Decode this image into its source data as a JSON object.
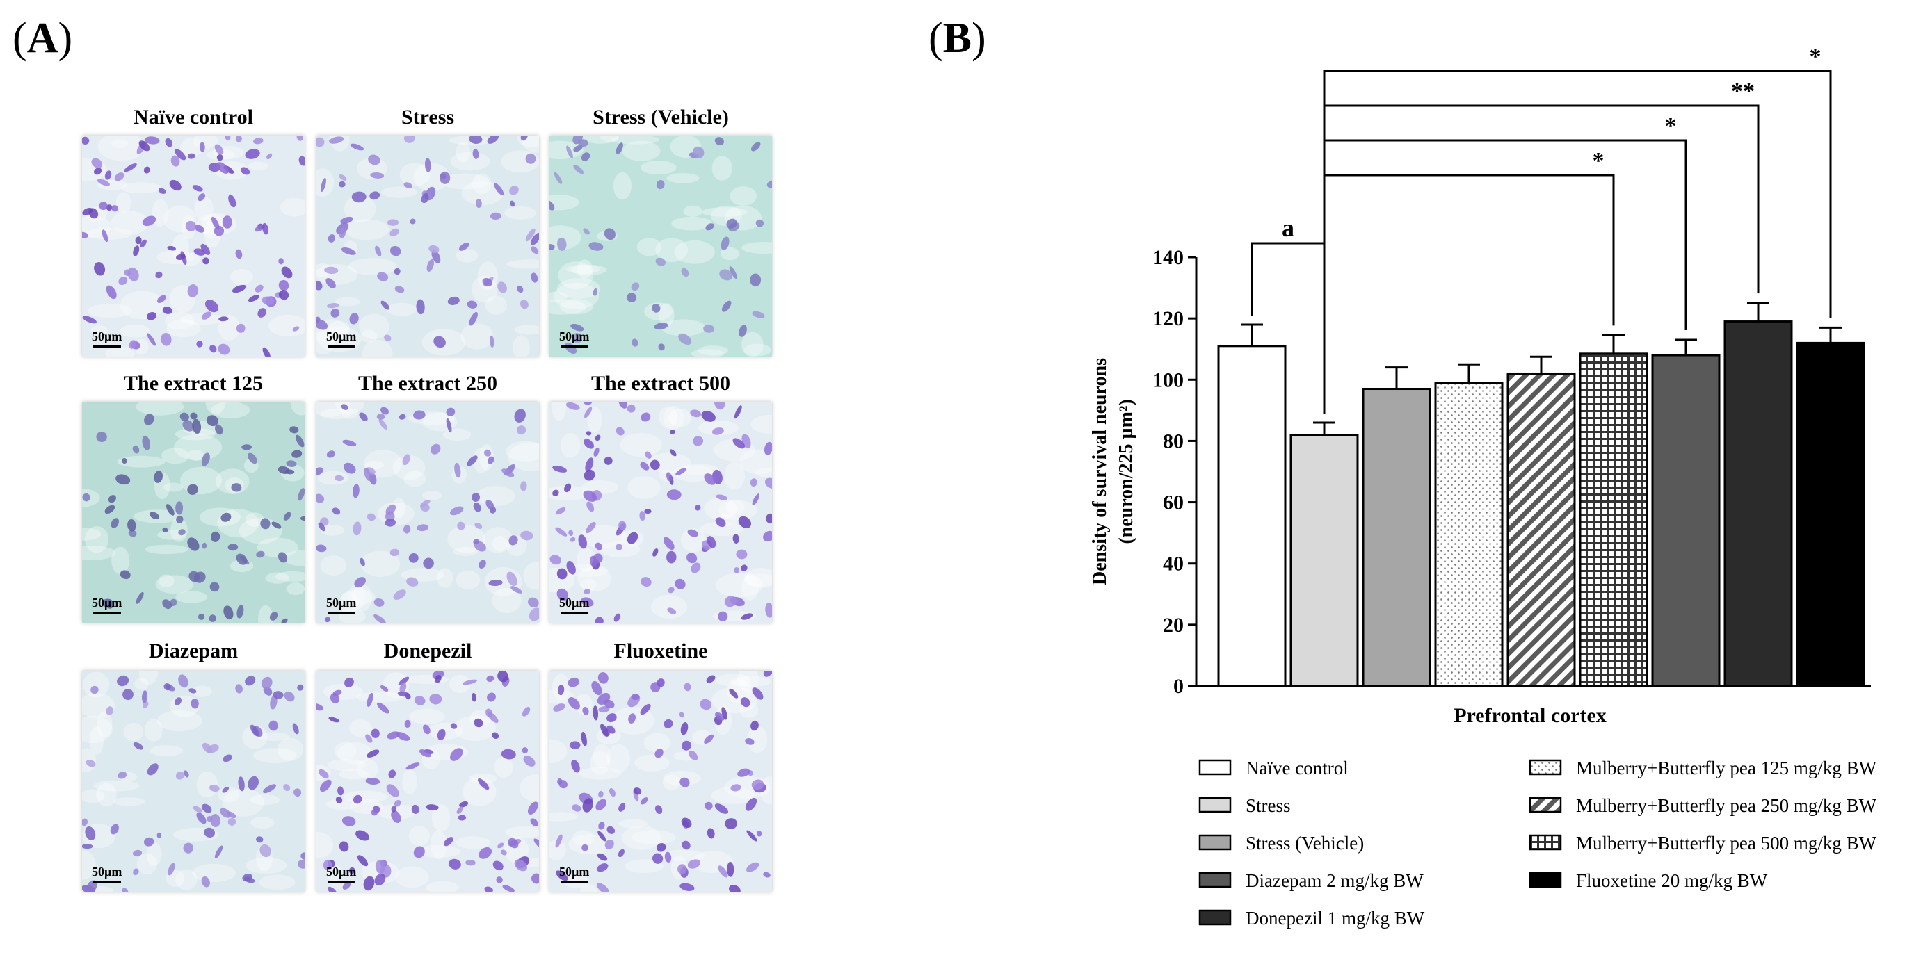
{
  "panels": {
    "a_label": "A",
    "b_label": "B"
  },
  "micrographs": [
    {
      "title": "Naïve control",
      "scale": "50µm",
      "tone": "dense"
    },
    {
      "title": "Stress",
      "scale": "50µm",
      "tone": "medium"
    },
    {
      "title": "Stress (Vehicle)",
      "scale": "50µm",
      "tone": "sparse"
    },
    {
      "title": "The extract 125",
      "scale": "50µm",
      "tone": "teal"
    },
    {
      "title": "The extract 250",
      "scale": "50µm",
      "tone": "medium"
    },
    {
      "title": "The extract 500",
      "scale": "50µm",
      "tone": "dense"
    },
    {
      "title": "Diazepam",
      "scale": "50µm",
      "tone": "medium"
    },
    {
      "title": "Donepezil",
      "scale": "50µm",
      "tone": "dense"
    },
    {
      "title": "Fluoxetine",
      "scale": "50µm",
      "tone": "dense"
    }
  ],
  "chart_data": {
    "type": "bar",
    "title": "",
    "xlabel": "Prefrontal cortex",
    "ylabel_line1": "Density of survival neurons",
    "ylabel_line2": "(neuron/225 µm²)",
    "ylim": [
      0,
      140
    ],
    "yticks": [
      "0",
      "20",
      "40",
      "60",
      "80",
      "100",
      "120",
      "140"
    ],
    "categories": [
      "Naïve control",
      "Stress",
      "Stress (Vehicle)",
      "Mulberry+Butterfly pea 125 mg/kg BW",
      "Mulberry+Butterfly pea 250 mg/kg BW",
      "Mulberry+Butterfly pea 500 mg/kg BW",
      "Diazepam 2 mg/kg BW",
      "Donepezil 1 mg/kg BW",
      "Fluoxetine 20 mg/kg BW"
    ],
    "values": [
      111,
      82,
      97,
      99,
      102,
      108.5,
      108,
      119,
      112
    ],
    "errors": [
      7,
      4,
      7,
      6,
      5.5,
      6,
      5,
      6,
      5
    ],
    "fills": [
      "#ffffff",
      "#d9d9d9",
      "#a6a6a6",
      "dots",
      "stripes",
      "grid",
      "#595959",
      "#2b2b2b",
      "#000000"
    ],
    "significance": [
      {
        "from": 0,
        "to": 1,
        "label": "a"
      },
      {
        "from": 1,
        "to": 5,
        "label": "*"
      },
      {
        "from": 1,
        "to": 6,
        "label": "*"
      },
      {
        "from": 1,
        "to": 7,
        "label": "**"
      },
      {
        "from": 1,
        "to": 8,
        "label": "*"
      }
    ],
    "legend": [
      {
        "label": "Naïve control",
        "fill": "#ffffff"
      },
      {
        "label": "Stress",
        "fill": "#d9d9d9"
      },
      {
        "label": "Stress (Vehicle)",
        "fill": "#a6a6a6"
      },
      {
        "label": "Diazepam 2 mg/kg BW",
        "fill": "#595959"
      },
      {
        "label": "Donepezil 1 mg/kg BW",
        "fill": "#2b2b2b"
      },
      {
        "label": "Mulberry+Butterfly pea 125 mg/kg BW",
        "fill": "dots"
      },
      {
        "label": "Mulberry+Butterfly pea 250 mg/kg BW",
        "fill": "stripes"
      },
      {
        "label": "Mulberry+Butterfly pea 500 mg/kg BW",
        "fill": "grid"
      },
      {
        "label": "Fluoxetine 20 mg/kg BW",
        "fill": "#000000"
      }
    ]
  }
}
